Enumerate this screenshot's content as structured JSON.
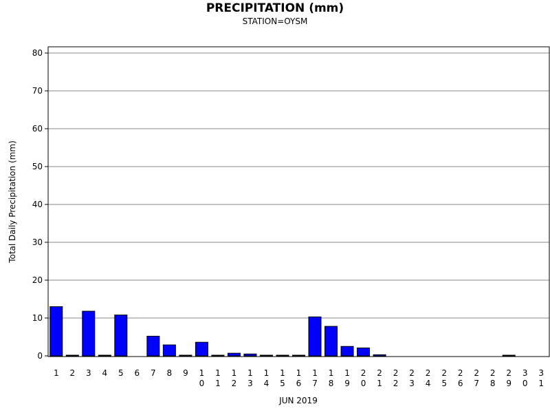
{
  "chart_data": {
    "type": "bar",
    "title": "PRECIPITATION (mm)",
    "subtitle": "STATION=OYSM",
    "xlabel": "JUN 2019",
    "ylabel": "Total Daily Precipitation (mm)",
    "ylim": [
      0,
      82
    ],
    "yticks": [
      0,
      10,
      20,
      30,
      40,
      50,
      60,
      70,
      80
    ],
    "grid": true,
    "categories": [
      "1",
      "2",
      "3",
      "4",
      "5",
      "6",
      "7",
      "8",
      "9",
      "10",
      "11",
      "12",
      "13",
      "14",
      "15",
      "16",
      "17",
      "18",
      "19",
      "20",
      "21",
      "22",
      "23",
      "24",
      "25",
      "26",
      "27",
      "28",
      "29",
      "30",
      "31"
    ],
    "values": [
      13.0,
      0.1,
      11.8,
      0.1,
      10.8,
      0,
      5.2,
      2.9,
      0.1,
      3.6,
      0.1,
      0.7,
      0.5,
      0.1,
      0.1,
      0.1,
      10.3,
      7.8,
      2.5,
      2.1,
      0.3,
      0,
      0,
      0,
      0,
      0,
      0,
      0,
      0.1,
      0,
      0
    ],
    "bar_color": "#0000ff"
  }
}
